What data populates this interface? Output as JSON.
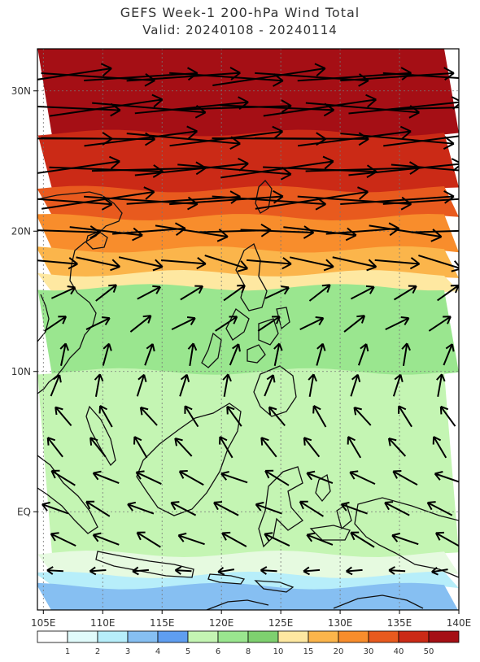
{
  "title": "GEFS Week-1 200-hPa Wind Total",
  "subtitle": "Valid: 20240108 - 20240114",
  "map": {
    "lon_range": [
      104.5,
      140
    ],
    "lat_range": [
      -7,
      33
    ],
    "lat_labels": [
      {
        "lat": 30,
        "label": "30N"
      },
      {
        "lat": 20,
        "label": "20N"
      },
      {
        "lat": 10,
        "label": "10N"
      },
      {
        "lat": 0,
        "label": "EQ"
      }
    ],
    "lon_labels": [
      {
        "lon": 105,
        "label": "105E"
      },
      {
        "lon": 110,
        "label": "110E"
      },
      {
        "lon": 115,
        "label": "115E"
      },
      {
        "lon": 120,
        "label": "120E"
      },
      {
        "lon": 125,
        "label": "125E"
      },
      {
        "lon": 130,
        "label": "130E"
      },
      {
        "lon": 135,
        "label": "135E"
      },
      {
        "lon": 140,
        "label": "140E"
      }
    ],
    "wind_bands": [
      {
        "lat_from": 33,
        "lat_to": 27,
        "color": "#a50f15"
      },
      {
        "lat_from": 27,
        "lat_to": 23,
        "color": "#cb2a16"
      },
      {
        "lat_from": 23,
        "lat_to": 21,
        "color": "#e85a1e"
      },
      {
        "lat_from": 21,
        "lat_to": 18.7,
        "color": "#f88d2c"
      },
      {
        "lat_from": 18.7,
        "lat_to": 17,
        "color": "#fbb54b"
      },
      {
        "lat_from": 17,
        "lat_to": 16,
        "color": "#fee8a1"
      },
      {
        "lat_from": 16,
        "lat_to": 10,
        "color": "#9ae68f"
      },
      {
        "lat_from": 10,
        "lat_to": -3,
        "color": "#c4f5b3"
      },
      {
        "lat_from": -3,
        "lat_to": -4.5,
        "color": "#e6fae0"
      },
      {
        "lat_from": -4.5,
        "lat_to": -5.3,
        "color": "#b7eefa"
      },
      {
        "lat_from": -5.3,
        "lat_to": -7,
        "color": "#86bff2"
      }
    ]
  },
  "colorbar": {
    "colors": [
      "#ffffff",
      "#e1fbfb",
      "#b7eefa",
      "#86bff2",
      "#5f9ef0",
      "#c4f5b3",
      "#9ae68f",
      "#7ed06f",
      "#fee8a1",
      "#fbb54b",
      "#f88d2c",
      "#e85a1e",
      "#cb2a16",
      "#a50f15"
    ],
    "labels": [
      "1",
      "2",
      "3",
      "4",
      "5",
      "6",
      "8",
      "10",
      "15",
      "20",
      "30",
      "40",
      "50"
    ]
  }
}
